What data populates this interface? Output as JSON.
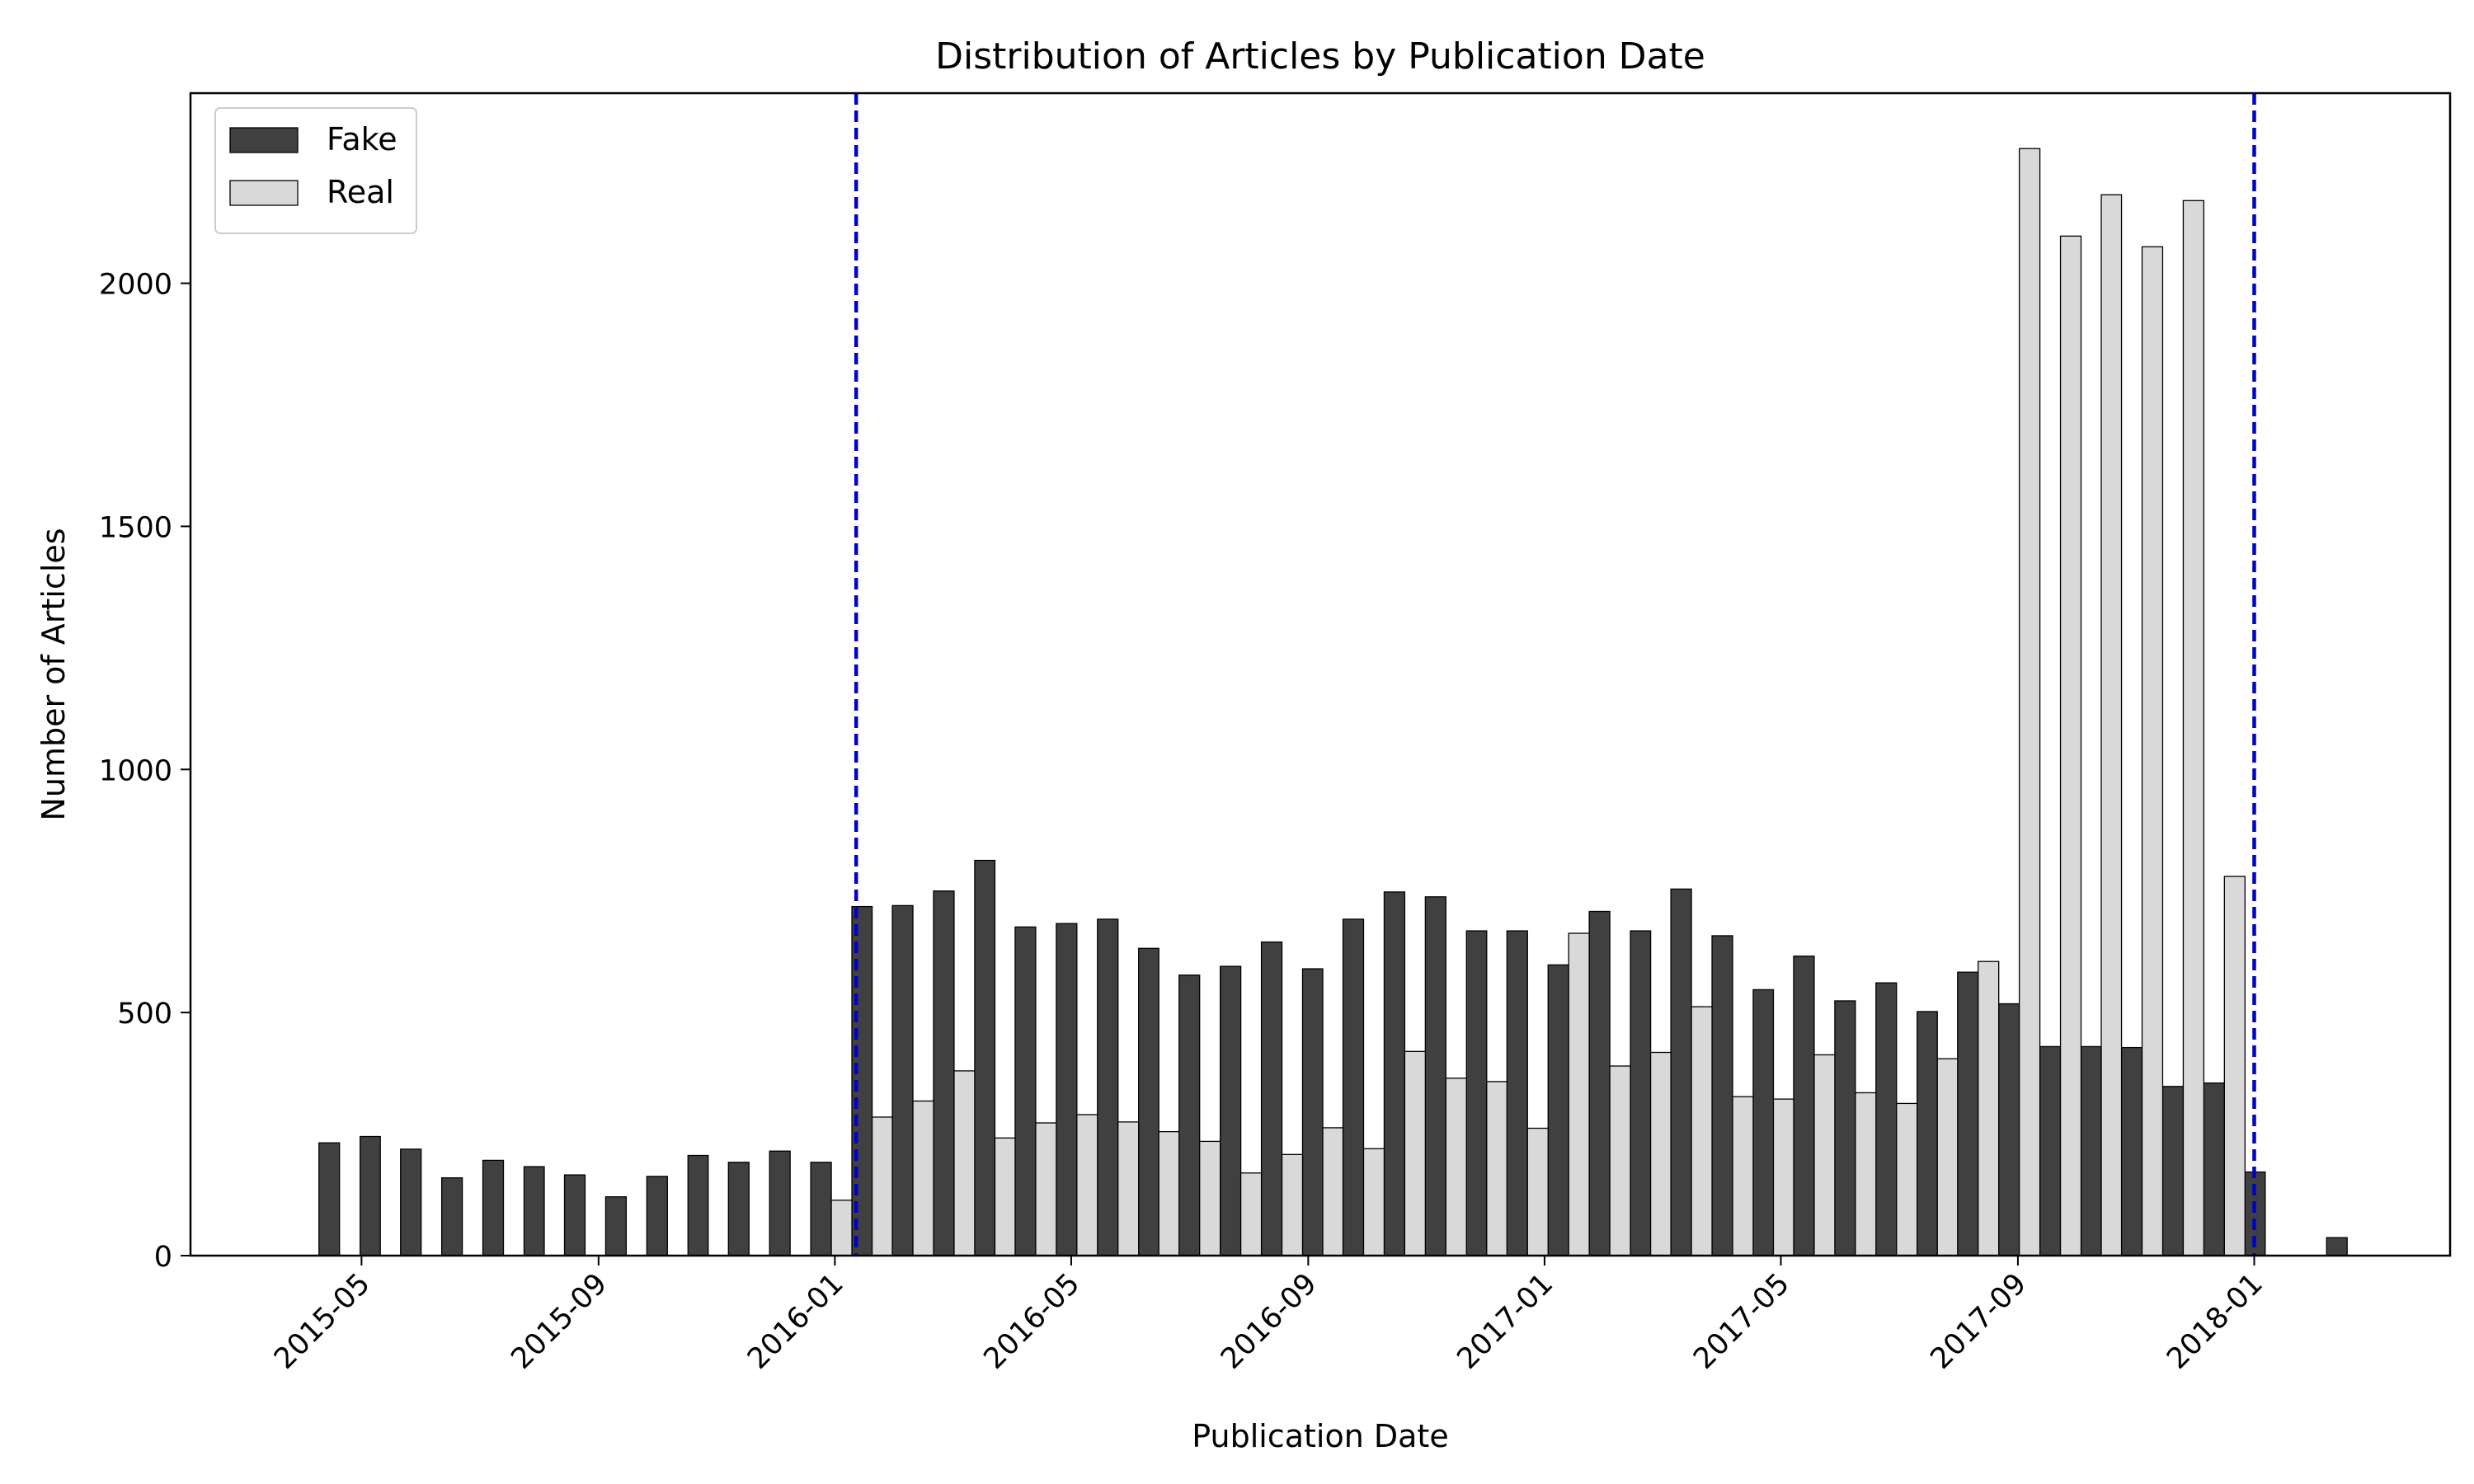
{
  "chart_data": {
    "type": "histogram",
    "title": "Distribution of Articles by Publication Date",
    "xlabel": "Publication Date",
    "ylabel": "Number of Articles",
    "bins": [
      2015.273,
      2015.331,
      2015.388,
      2015.446,
      2015.504,
      2015.562,
      2015.619,
      2015.677,
      2015.735,
      2015.793,
      2015.85,
      2015.908,
      2015.966,
      2016.024,
      2016.081,
      2016.139,
      2016.197,
      2016.254,
      2016.312,
      2016.37,
      2016.428,
      2016.485,
      2016.543,
      2016.601,
      2016.659,
      2016.716,
      2016.774,
      2016.832,
      2016.89,
      2016.947,
      2017.005,
      2017.063,
      2017.121,
      2017.178,
      2017.236,
      2017.294,
      2017.351,
      2017.409,
      2017.467,
      2017.525,
      2017.582,
      2017.64,
      2017.698,
      2017.756,
      2017.813,
      2017.871,
      2017.929,
      2017.987,
      2018.044,
      2018.102,
      2018.16
    ],
    "series": [
      {
        "name": "Fake",
        "color": "#404040",
        "values": [
          232,
          245,
          219,
          160,
          196,
          183,
          166,
          121,
          163,
          206,
          192,
          215,
          192,
          718,
          720,
          750,
          813,
          676,
          683,
          692,
          632,
          577,
          595,
          645,
          590,
          692,
          748,
          738,
          668,
          668,
          598,
          708,
          668,
          754,
          658,
          547,
          616,
          524,
          561,
          502,
          583,
          518,
          430,
          430,
          428,
          348,
          355,
          172,
          0,
          37
        ]
      },
      {
        "name": "Real",
        "color": "#d9d9d9",
        "values": [
          0,
          0,
          0,
          0,
          0,
          0,
          0,
          0,
          0,
          0,
          0,
          0,
          114,
          285,
          318,
          380,
          242,
          273,
          290,
          275,
          255,
          235,
          170,
          208,
          263,
          220,
          420,
          365,
          358,
          262,
          663,
          390,
          418,
          512,
          327,
          322,
          413,
          335,
          313,
          405,
          605,
          2277,
          2097,
          2182,
          2075,
          2170,
          780,
          0,
          0,
          0
        ]
      }
    ],
    "xlim": [
      2015.092,
      2018.276
    ],
    "xticks": [
      {
        "value": 2015.333,
        "label": "2015-05"
      },
      {
        "value": 2015.667,
        "label": "2015-09"
      },
      {
        "value": 2016,
        "label": "2016-01"
      },
      {
        "value": 2016.333,
        "label": "2016-05"
      },
      {
        "value": 2016.667,
        "label": "2016-09"
      },
      {
        "value": 2017,
        "label": "2017-01"
      },
      {
        "value": 2017.333,
        "label": "2017-05"
      },
      {
        "value": 2017.667,
        "label": "2017-09"
      },
      {
        "value": 2018,
        "label": "2018-01"
      }
    ],
    "ylim": [
      0,
      2391
    ],
    "yticks": [
      0,
      500,
      1000,
      1500,
      2000
    ],
    "vlines": [
      2016.03,
      2018.0
    ],
    "vline_color": "#0000cc",
    "legend": "upper left"
  }
}
